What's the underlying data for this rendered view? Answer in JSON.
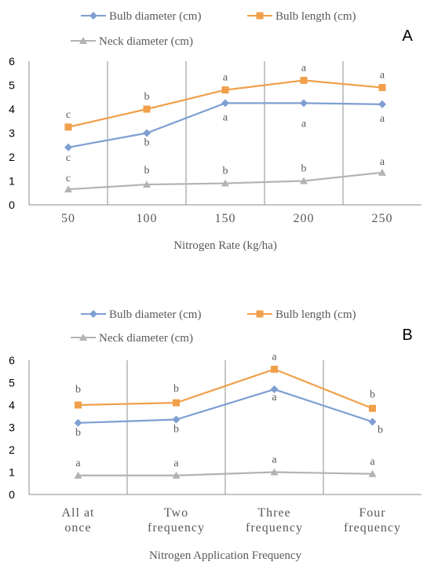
{
  "chart_data": [
    {
      "type": "line",
      "panel_label": "A",
      "categories": [
        "50",
        "100",
        "150",
        "200",
        "250"
      ],
      "xlabel": "Nitrogen Rate (kg/ha)",
      "ylabel": "",
      "ylim": [
        0,
        6
      ],
      "yticks": [
        "0",
        "1",
        "2",
        "3",
        "4",
        "5",
        "6"
      ],
      "legend_position": "top",
      "grid": "vertical category separators",
      "series": [
        {
          "name": "Bulb diameter (cm)",
          "color": "#7f9fd3",
          "marker": "diamond",
          "values": [
            2.4,
            3.0,
            4.25,
            4.25,
            4.2
          ],
          "letters": [
            "c",
            "b",
            "a",
            "a",
            "a"
          ]
        },
        {
          "name": "Bulb length (cm)",
          "color": "#f0a04a",
          "marker": "square",
          "values": [
            3.25,
            4.0,
            4.8,
            5.2,
            4.9
          ],
          "letters": [
            "c",
            "b",
            "a",
            "a",
            "a"
          ]
        },
        {
          "name": "Neck diameter (cm)",
          "color": "#b3b3b3",
          "marker": "triangle",
          "values": [
            0.65,
            0.85,
            0.9,
            1.0,
            1.35
          ],
          "letters": [
            "c",
            "b",
            "b",
            "b",
            "a"
          ]
        }
      ]
    },
    {
      "type": "line",
      "panel_label": "B",
      "categories": [
        [
          "All at",
          "once"
        ],
        [
          "Two",
          "frequency"
        ],
        [
          "Three",
          "frequency"
        ],
        [
          "Four",
          "frequency"
        ]
      ],
      "xlabel": "Nitrogen Application Frequency",
      "ylabel": "",
      "ylim": [
        0,
        6
      ],
      "yticks": [
        "0",
        "1",
        "2",
        "3",
        "4",
        "5",
        "6"
      ],
      "legend_position": "top",
      "grid": "vertical category separators",
      "series": [
        {
          "name": "Bulb diameter (cm)",
          "color": "#7f9fd3",
          "marker": "diamond",
          "values": [
            3.2,
            3.35,
            4.7,
            3.25
          ],
          "letters": [
            "b",
            "b",
            "a",
            "b"
          ]
        },
        {
          "name": "Bulb length (cm)",
          "color": "#f0a04a",
          "marker": "square",
          "values": [
            4.0,
            4.1,
            5.6,
            3.85
          ],
          "letters": [
            "b",
            "b",
            "a",
            "b"
          ]
        },
        {
          "name": "Neck diameter (cm)",
          "color": "#b3b3b3",
          "marker": "triangle",
          "values": [
            0.85,
            0.85,
            1.0,
            0.92
          ],
          "letters": [
            "a",
            "a",
            "a",
            "a"
          ]
        }
      ]
    }
  ]
}
